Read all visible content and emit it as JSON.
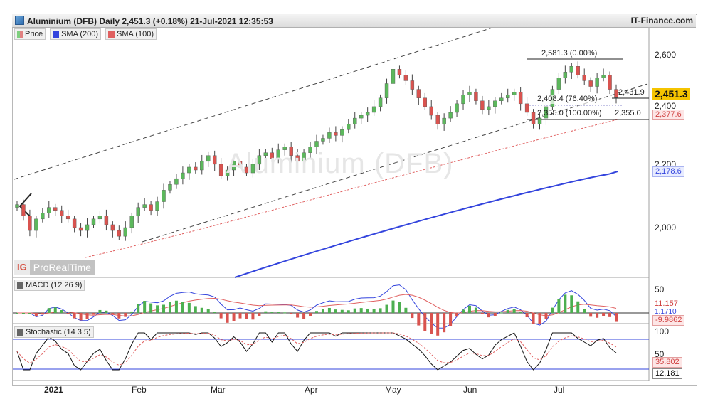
{
  "header": {
    "title": "Aluminium (DFB) Daily 2,451.3 (+0.18%) 21-Jul-2021 12:35:53",
    "site": "IT-Finance.com"
  },
  "watermark": "Aluminium (DFB)",
  "brand": {
    "ig": "IG",
    "name": "ProRealTime"
  },
  "legend": {
    "price": "Price",
    "sma200": "SMA (200)",
    "sma100": "SMA (100)"
  },
  "colors": {
    "up": "#5cb85c",
    "down": "#d9534f",
    "sma200": "#3344dd",
    "sma100": "#e06060",
    "price_tag": "#f5c400"
  },
  "price_axis": {
    "ticks": [
      "2,600",
      "2,400",
      "2,200",
      "2,000"
    ]
  },
  "price_tags": {
    "last": "2,451.3",
    "sma100": "2,377.6",
    "sma200": "2,178.6"
  },
  "fib": {
    "high": "2,581.3 (0.00%)",
    "mid": "2,408.4 (76.40%)",
    "low": "2,355.0 (100.00%)",
    "low_right": "2,355.0",
    "level": "2,431.9"
  },
  "macd": {
    "label": "MACD (12 26 9)",
    "axis": [
      "50"
    ],
    "tags": [
      "11.157",
      "1.1710",
      "-9.9862"
    ]
  },
  "stochastic": {
    "label": "Stochastic (14 3 5)",
    "axis": [
      "100",
      "50"
    ],
    "tags": [
      "35.802",
      "12.181"
    ]
  },
  "x_axis": {
    "labels": [
      "2021",
      "Feb",
      "Mar",
      "Apr",
      "May",
      "Jun",
      "Jul"
    ]
  },
  "chart_data": {
    "type": "line",
    "title": "Aluminium (DFB) Daily 2,451.3 (+0.18%) 21-Jul-2021 12:35:53",
    "x_labels": [
      "2021",
      "Feb",
      "Mar",
      "Apr",
      "May",
      "Jun",
      "Jul"
    ],
    "ylim": [
      1900,
      2700
    ],
    "close": [
      2080,
      2040,
      1990,
      2030,
      2050,
      2070,
      2060,
      2040,
      2030,
      2000,
      1990,
      2010,
      2030,
      2040,
      2010,
      1990,
      1970,
      2000,
      2040,
      2070,
      2080,
      2060,
      2090,
      2130,
      2150,
      2170,
      2190,
      2210,
      2200,
      2230,
      2250,
      2220,
      2180,
      2200,
      2230,
      2210,
      2190,
      2220,
      2250,
      2260,
      2240,
      2270,
      2280,
      2250,
      2230,
      2260,
      2280,
      2300,
      2310,
      2330,
      2320,
      2340,
      2360,
      2380,
      2390,
      2400,
      2420,
      2450,
      2500,
      2550,
      2530,
      2510,
      2480,
      2450,
      2420,
      2390,
      2360,
      2380,
      2400,
      2430,
      2460,
      2470,
      2440,
      2410,
      2420,
      2440,
      2450,
      2460,
      2470,
      2430,
      2400,
      2360,
      2380,
      2420,
      2480,
      2520,
      2540,
      2560,
      2530,
      2510,
      2490,
      2520,
      2530,
      2480,
      2451.3
    ],
    "sma100_end": 2377.6,
    "sma200_end": 2178.6,
    "series": [
      {
        "name": "Price",
        "last": 2451.3
      },
      {
        "name": "SMA (200)",
        "last": 2178.6
      },
      {
        "name": "SMA (100)",
        "last": 2377.6
      }
    ],
    "fibonacci": {
      "high": 2581.3,
      "level_76_4": 2408.4,
      "low": 2355.0
    },
    "macd": {
      "macd": 11.157,
      "signal": 1.171,
      "histogram": -9.9862
    },
    "stochastic": {
      "k": 35.802,
      "d": 12.181
    }
  }
}
